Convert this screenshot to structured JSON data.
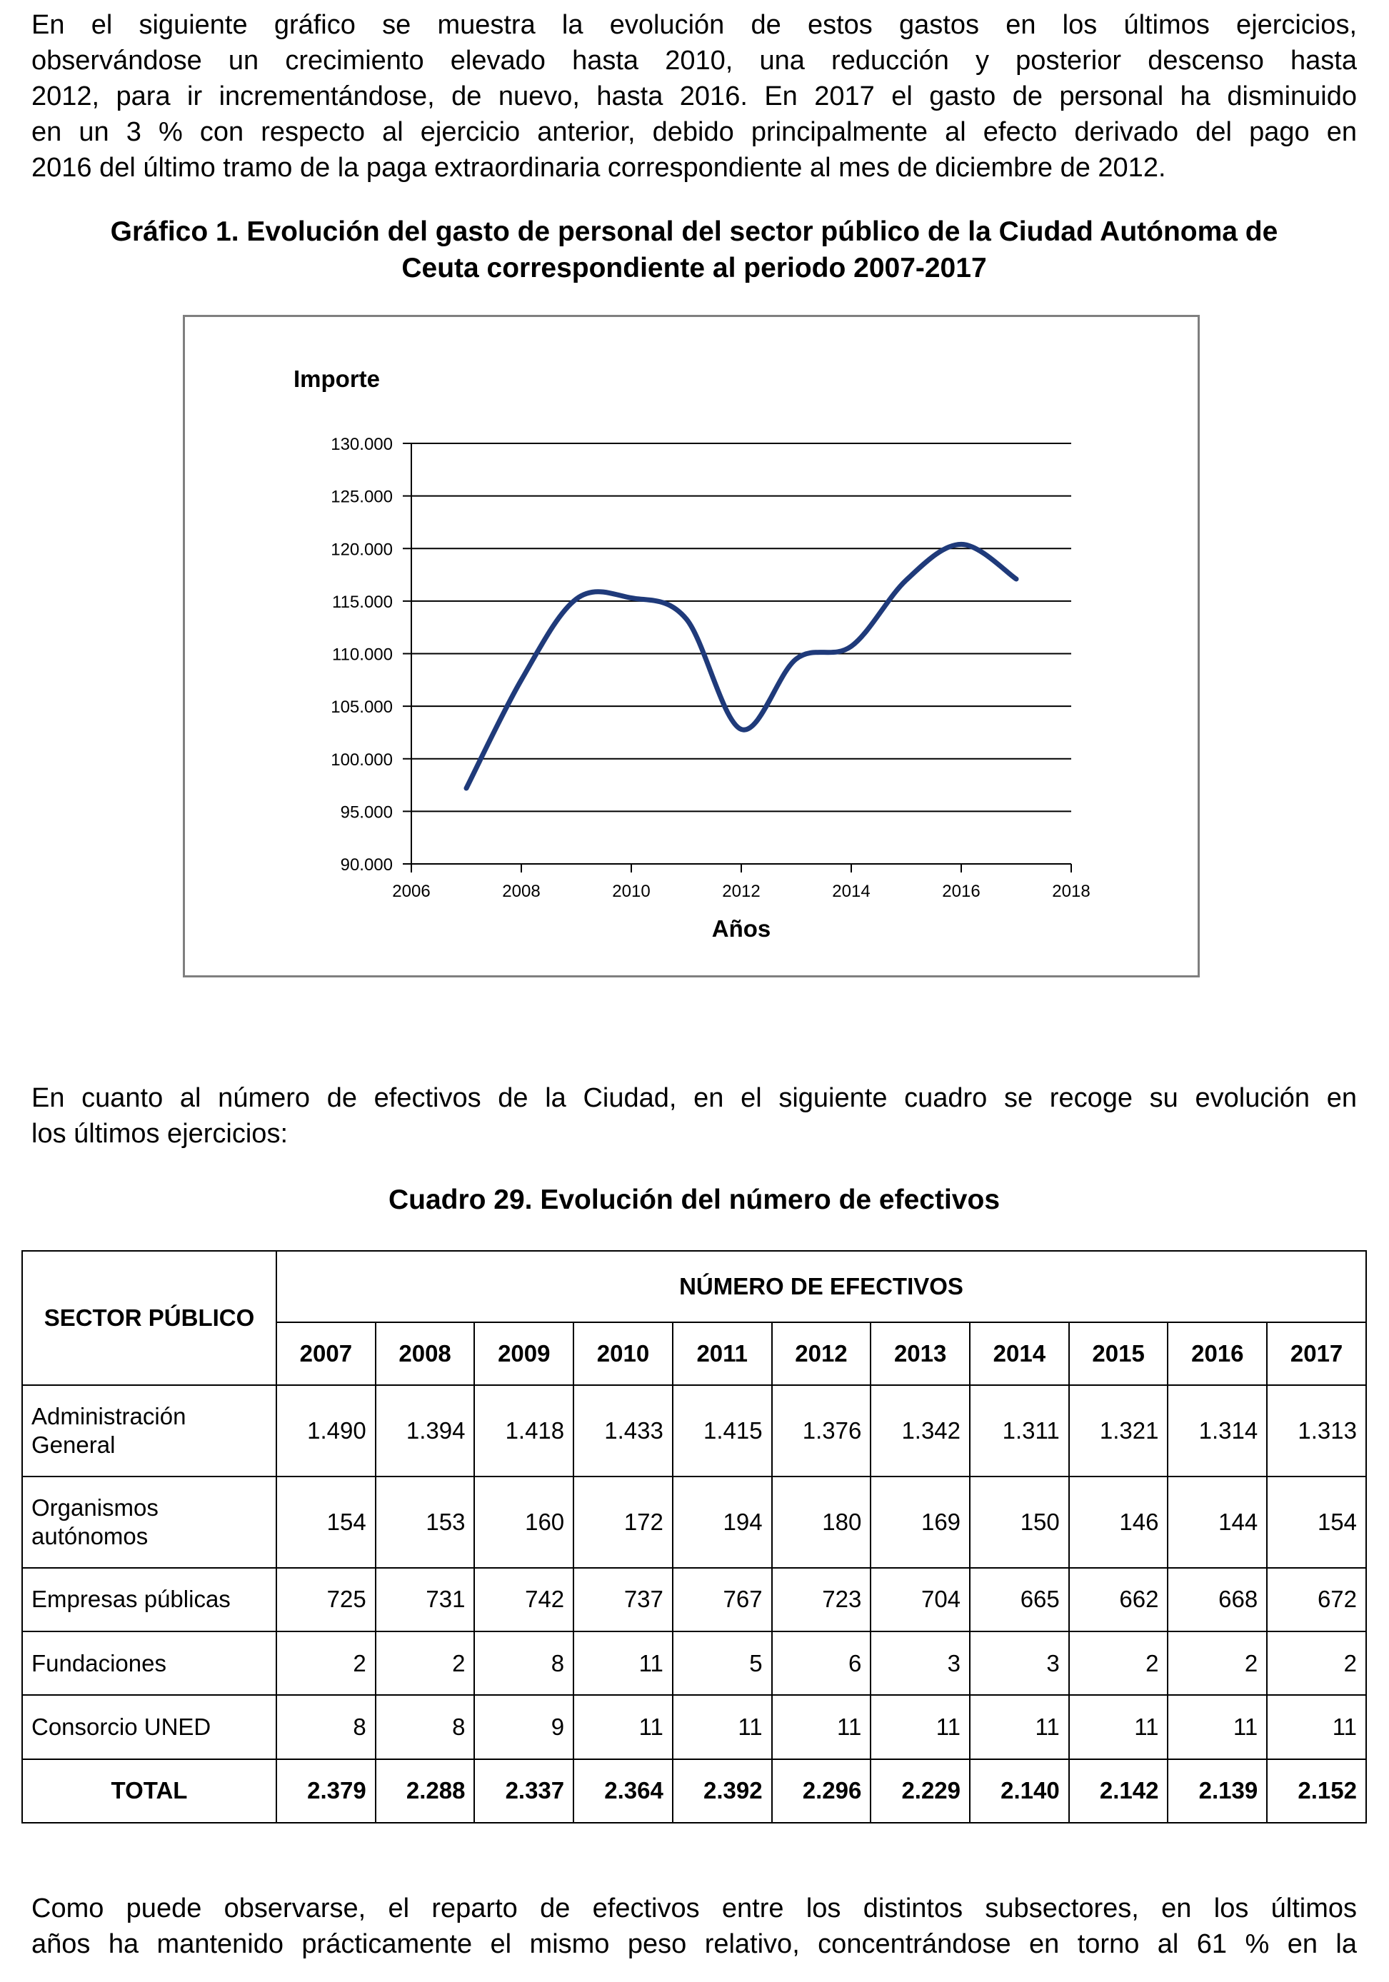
{
  "intro_paragraph": {
    "lines": [
      "En el siguiente gráfico se muestra la evolución de estos gastos en los últimos ejercicios,",
      "observándose un crecimiento elevado hasta 2010, una reducción y posterior descenso hasta",
      "2012, para ir incrementándose, de nuevo, hasta 2016. En 2017 el gasto de personal ha disminuido",
      "en un 3 % con respecto al ejercicio anterior, debido principalmente al efecto derivado del pago en",
      "2016 del último tramo de la paga extraordinaria correspondiente al mes de diciembre de 2012."
    ]
  },
  "chart_caption": {
    "line1": "Gráfico 1. Evolución del gasto de personal del sector público de la Ciudad Autónoma de",
    "line2": "Ceuta correspondiente al periodo 2007-2017"
  },
  "chart_data": {
    "type": "line",
    "title": "",
    "xlabel": "Años",
    "ylabel": "Importe",
    "xlim": [
      2006,
      2018
    ],
    "ylim": [
      90000,
      130000
    ],
    "x_ticks": [
      2006,
      2008,
      2010,
      2012,
      2014,
      2016,
      2018
    ],
    "x_tick_labels": [
      "2006",
      "2008",
      "2010",
      "2012",
      "2014",
      "2016",
      "2018"
    ],
    "y_ticks": [
      90000,
      95000,
      100000,
      105000,
      110000,
      115000,
      120000,
      125000,
      130000
    ],
    "y_tick_labels": [
      "90.000",
      "95.000",
      "100.000",
      "105.000",
      "110.000",
      "115.000",
      "120.000",
      "125.000",
      "130.000"
    ],
    "grid": "horizontal",
    "legend": "none",
    "smooth": true,
    "line_color": "#1f3a7a",
    "series": [
      {
        "x": [
          2007,
          2008,
          2009,
          2010,
          2011,
          2012,
          2013,
          2014,
          2015,
          2016,
          2017
        ],
        "values": [
          97200,
          107500,
          115200,
          115300,
          113300,
          102800,
          109500,
          110700,
          117000,
          120400,
          117100
        ]
      }
    ]
  },
  "middle_paragraph": {
    "line1": "En cuanto al número de efectivos de la Ciudad, en el siguiente cuadro se recoge su evolución en",
    "line2": "los últimos ejercicios:"
  },
  "table_caption": "Cuadro 29. Evolución del número de efectivos",
  "table": {
    "sector_header": "SECTOR PÚBLICO",
    "group_header": "NÚMERO DE EFECTIVOS",
    "years": [
      "2007",
      "2008",
      "2009",
      "2010",
      "2011",
      "2012",
      "2013",
      "2014",
      "2015",
      "2016",
      "2017"
    ],
    "rows": [
      {
        "label_lines": [
          "Administración",
          "General"
        ],
        "values": [
          "1.490",
          "1.394",
          "1.418",
          "1.433",
          "1.415",
          "1.376",
          "1.342",
          "1.311",
          "1.321",
          "1.314",
          "1.313"
        ]
      },
      {
        "label_lines": [
          "Organismos",
          "autónomos"
        ],
        "values": [
          "154",
          "153",
          "160",
          "172",
          "194",
          "180",
          "169",
          "150",
          "146",
          "144",
          "154"
        ]
      },
      {
        "label_lines": [
          "Empresas públicas"
        ],
        "values": [
          "725",
          "731",
          "742",
          "737",
          "767",
          "723",
          "704",
          "665",
          "662",
          "668",
          "672"
        ]
      },
      {
        "label_lines": [
          "Fundaciones"
        ],
        "values": [
          "2",
          "2",
          "8",
          "11",
          "5",
          "6",
          "3",
          "3",
          "2",
          "2",
          "2"
        ]
      },
      {
        "label_lines": [
          "Consorcio UNED"
        ],
        "values": [
          "8",
          "8",
          "9",
          "11",
          "11",
          "11",
          "11",
          "11",
          "11",
          "11",
          "11"
        ]
      }
    ],
    "total": {
      "label": "TOTAL",
      "values": [
        "2.379",
        "2.288",
        "2.337",
        "2.364",
        "2.392",
        "2.296",
        "2.229",
        "2.140",
        "2.142",
        "2.139",
        "2.152"
      ]
    }
  },
  "closing_paragraph": {
    "line1": "Como puede observarse, el reparto de efectivos entre los distintos subsectores, en los últimos",
    "line2": "años ha mantenido prácticamente el mismo peso relativo, concentrándose en torno al 61 % en la"
  }
}
